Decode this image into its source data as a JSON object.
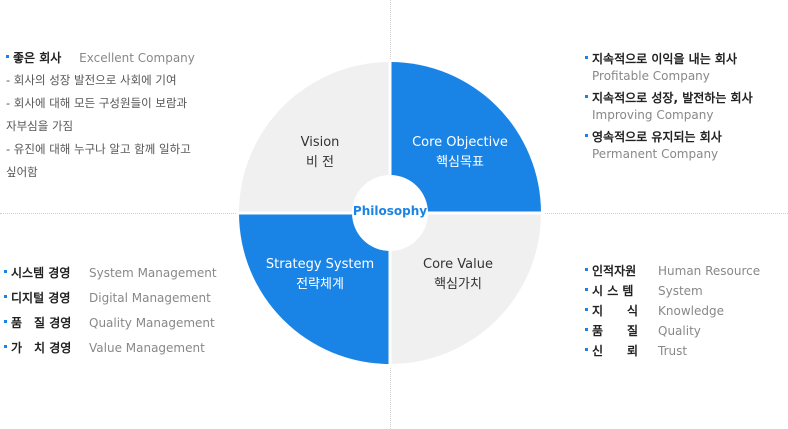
{
  "colors": {
    "accent": "#1a84e6",
    "quad_gray": "#f0f0f0",
    "text_dark": "#333333",
    "text_gray": "#888888"
  },
  "center": "Philosophy",
  "quadrants": {
    "vision": {
      "en": "Vision",
      "ko": "비 전"
    },
    "core_objective": {
      "en": "Core Objective",
      "ko": "핵심목표"
    },
    "strategy_system": {
      "en": "Strategy System",
      "ko": "전략체계"
    },
    "core_value": {
      "en": "Core Value",
      "ko": "핵심가치"
    }
  },
  "vision_block": {
    "title_ko": "좋은 회사",
    "title_en": "Excellent Company",
    "lines": [
      "- 회사의 성장 발전으로 사회에 기여",
      "- 회사에 대해 모든 구성원들이 보람과",
      "자부심을 가짐",
      "- 유진에 대해 누구나 알고 함께 일하고",
      "싶어함"
    ]
  },
  "objective_block": {
    "items": [
      {
        "ko": "지속적으로 이익을 내는 회사",
        "en": "Profitable Company"
      },
      {
        "ko": "지속적으로 성장, 발전하는 회사",
        "en": "Improving Company"
      },
      {
        "ko": "영속적으로 유지되는 회사",
        "en": "Permanent Company"
      }
    ]
  },
  "strategy_block": {
    "items": [
      {
        "ko": "시스템 경영",
        "en": "System Management"
      },
      {
        "ko": "디지털 경영",
        "en": "Digital Management"
      },
      {
        "ko": "품　질 경영",
        "en": "Quality Management"
      },
      {
        "ko": "가　치 경영",
        "en": "Value Management"
      }
    ]
  },
  "value_block": {
    "items": [
      {
        "ko": "인적자원",
        "en": "Human Resource"
      },
      {
        "ko": "시 스 템",
        "en": "System"
      },
      {
        "ko": "지　　식",
        "en": "Knowledge"
      },
      {
        "ko": "품　　질",
        "en": "Quality"
      },
      {
        "ko": "신　　뢰",
        "en": "Trust"
      }
    ]
  }
}
